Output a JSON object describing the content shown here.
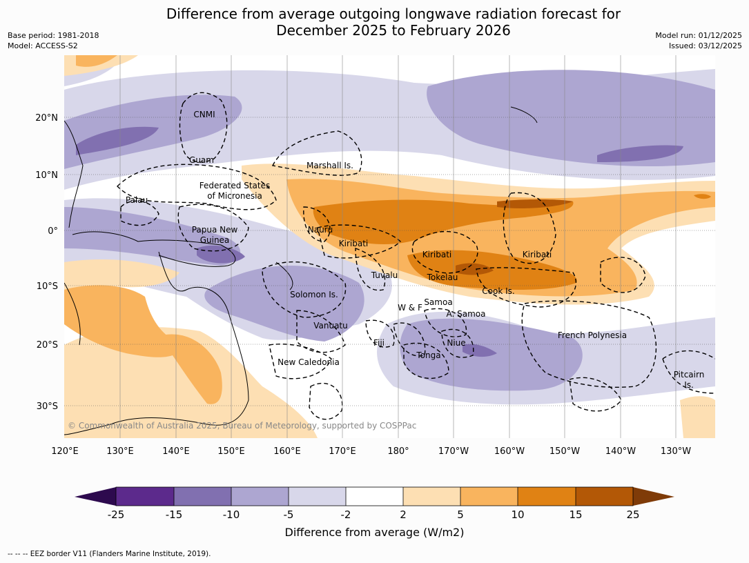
{
  "header": {
    "title_line1": "Difference from average outgoing longwave radiation forecast for",
    "title_line2": "December 2025 to February 2026",
    "base_period": "Base period: 1981-2018",
    "model": "Model: ACCESS-S2",
    "model_run": "Model run: 01/12/2025",
    "issued": "Issued: 03/12/2025"
  },
  "map": {
    "lon_labels": [
      "120°E",
      "130°E",
      "140°E",
      "150°E",
      "160°E",
      "170°E",
      "180°",
      "170°W",
      "160°W",
      "150°W",
      "140°W",
      "130°W"
    ],
    "lat_labels": [
      "20°N",
      "10°N",
      "0°",
      "10°S",
      "20°S",
      "30°S"
    ],
    "copyright": "© Commonwealth of Australia 2025, Bureau of Meteorology, supported by COSPPac",
    "places": [
      "CNMI",
      "Guam",
      "Marshall Is.",
      "Federated States",
      "of Micronesia",
      "Palau",
      "Papua New",
      "Guinea",
      "Nauru",
      "Kiribati",
      "Kiribati",
      "Kiribati",
      "Tuvalu",
      "Tokelau",
      "Cook Is.",
      "Solomon Is.",
      "W & F",
      "Samoa",
      "A. Samoa",
      "Vanuatu",
      "Fiji",
      "Niue",
      "Tonga",
      "French Polynesia",
      "New Caledonia",
      "Pitcairn",
      "Is."
    ]
  },
  "colorbar": {
    "ticks": [
      "-25",
      "-15",
      "-10",
      "-5",
      "-2",
      "2",
      "5",
      "10",
      "15",
      "25"
    ],
    "colors": [
      "#2d0a4e",
      "#5c2a8c",
      "#8170b0",
      "#ada6d1",
      "#d8d7ea",
      "#ffffff",
      "#fddfb3",
      "#f9b45e",
      "#e08214",
      "#b35806",
      "#7f3b08"
    ],
    "label": "Difference from average (W/m2)"
  },
  "footnote": "--  --  -- EEZ border V11 (Flanders Marine Institute, 2019)."
}
